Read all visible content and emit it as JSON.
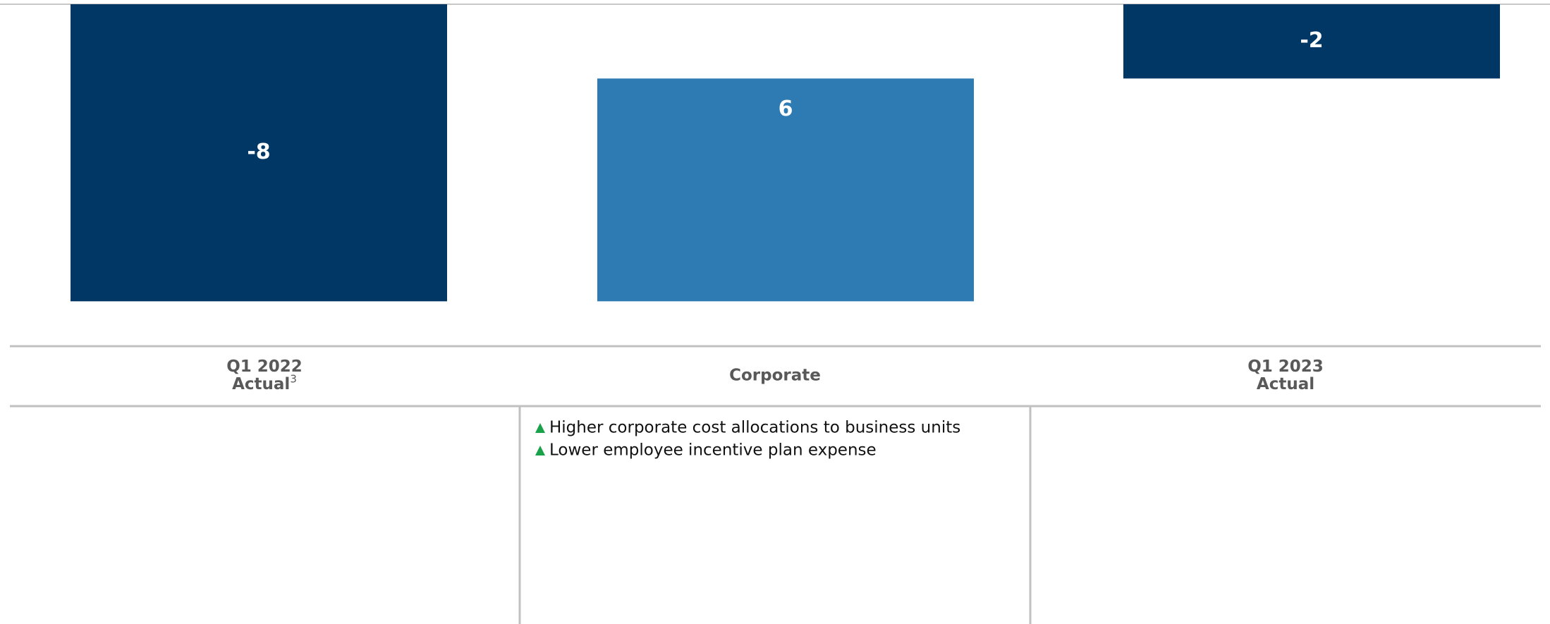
{
  "chart_data": {
    "type": "waterfall",
    "categories": [
      {
        "lines": [
          "Q1 2022",
          "Actual"
        ],
        "footnote": "3"
      },
      {
        "lines": [
          "Corporate"
        ]
      },
      {
        "lines": [
          "Q1 2023",
          "Actual"
        ]
      }
    ],
    "values": [
      -8,
      6,
      -2
    ],
    "measures": [
      "total",
      "relative",
      "total"
    ],
    "colors": {
      "total": "#003764",
      "relative": "#2e7bb4"
    },
    "ylim": [
      -9,
      0
    ],
    "comments": [
      [],
      [
        "Higher corporate cost allocations to business units",
        "Lower employee incentive plan expense"
      ],
      []
    ]
  }
}
